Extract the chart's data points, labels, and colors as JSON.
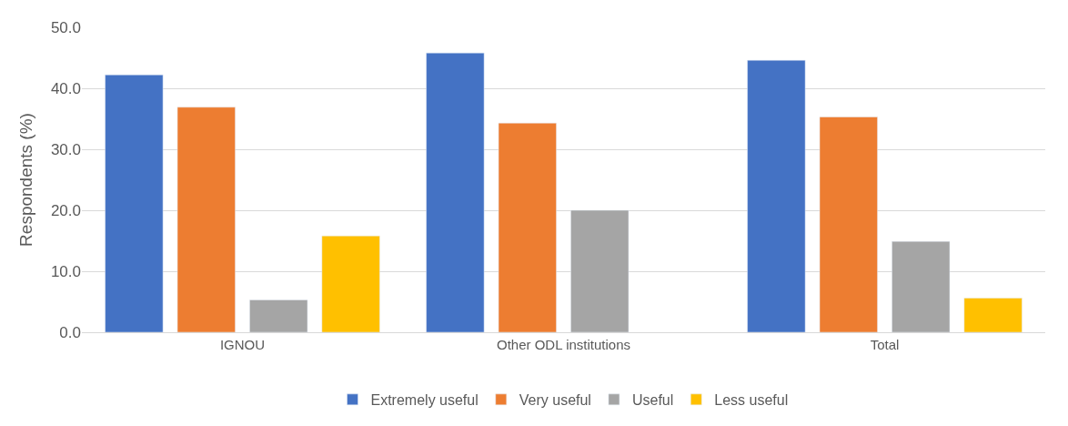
{
  "chart_data": {
    "type": "bar",
    "ylabel": "Respondents (%)",
    "categories": [
      "IGNOU",
      "Other ODL institutions",
      "Total"
    ],
    "series": [
      {
        "name": "Extremely useful",
        "color": "#4472c4",
        "values": [
          42.2,
          45.8,
          44.6
        ]
      },
      {
        "name": "Very useful",
        "color": "#ed7d31",
        "values": [
          36.9,
          34.3,
          35.3
        ]
      },
      {
        "name": "Useful",
        "color": "#a5a5a5",
        "values": [
          5.3,
          20.0,
          14.9
        ]
      },
      {
        "name": "Less useful",
        "color": "#ffc000",
        "values": [
          15.8,
          null,
          5.6
        ]
      }
    ],
    "ylim": [
      0,
      50
    ],
    "yticks": [
      {
        "value": 0,
        "label": "0.0"
      },
      {
        "value": 10,
        "label": "10.0"
      },
      {
        "value": 20,
        "label": "20.0"
      },
      {
        "value": 30,
        "label": "30.0"
      },
      {
        "value": 40,
        "label": "40.0"
      },
      {
        "value": 50,
        "label": "50.0"
      }
    ],
    "grid": "y",
    "legend": "bottom"
  }
}
